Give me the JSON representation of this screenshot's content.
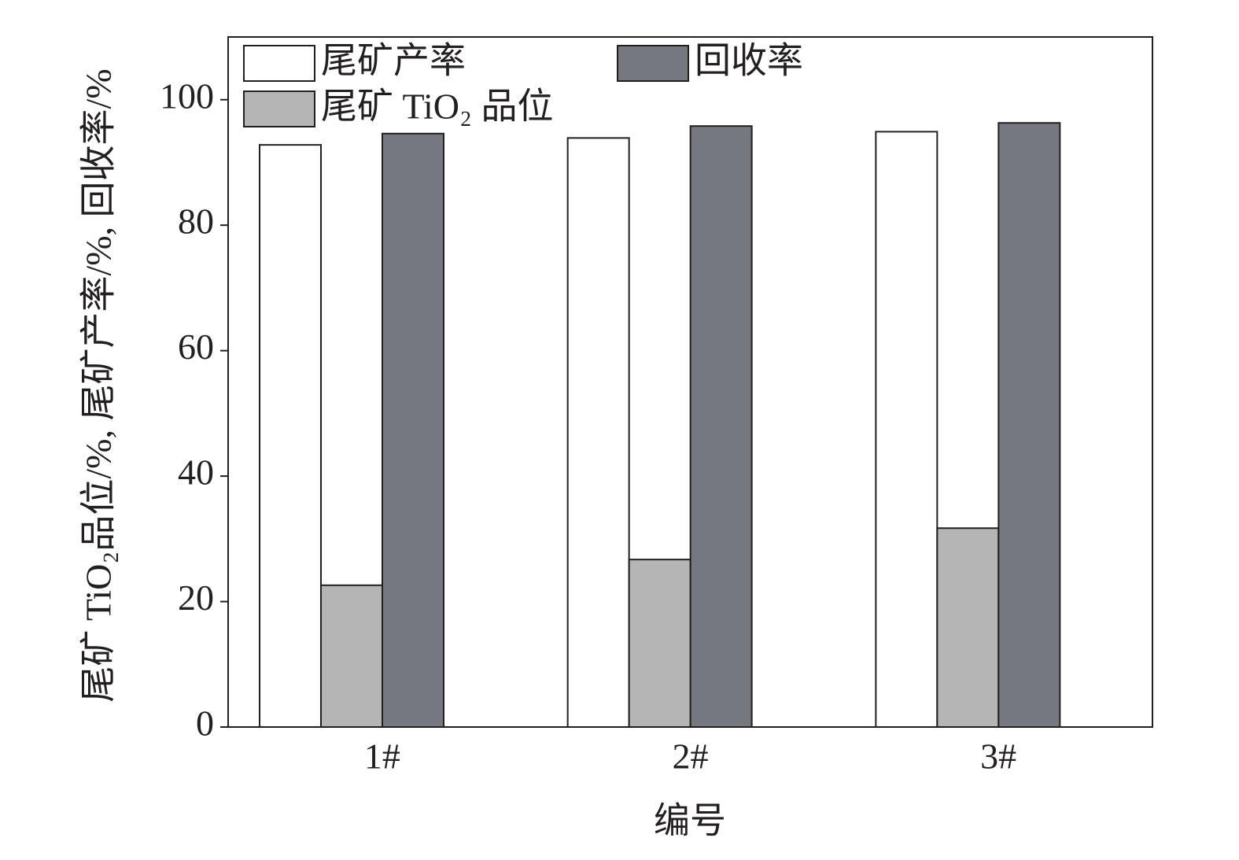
{
  "chart_data": {
    "type": "bar",
    "xlabel": "编号",
    "ylabel": "尾矿 TiO₂品位/%, 尾矿产率/%, 回收率/%",
    "categories": [
      "1#",
      "2#",
      "3#"
    ],
    "series": [
      {
        "name": "尾矿产率",
        "color": "#ffffff",
        "values": [
          92.8,
          93.9,
          94.9
        ]
      },
      {
        "name": "尾矿 TiO₂ 品位",
        "color": "#b5b5b5",
        "values": [
          22.6,
          26.7,
          31.7
        ]
      },
      {
        "name": "回收率",
        "color": "#75787f",
        "values": [
          94.6,
          95.8,
          96.3
        ]
      }
    ],
    "ylim": [
      0,
      110
    ],
    "yticks": [
      0,
      20,
      40,
      60,
      80,
      100
    ],
    "grid": false
  }
}
